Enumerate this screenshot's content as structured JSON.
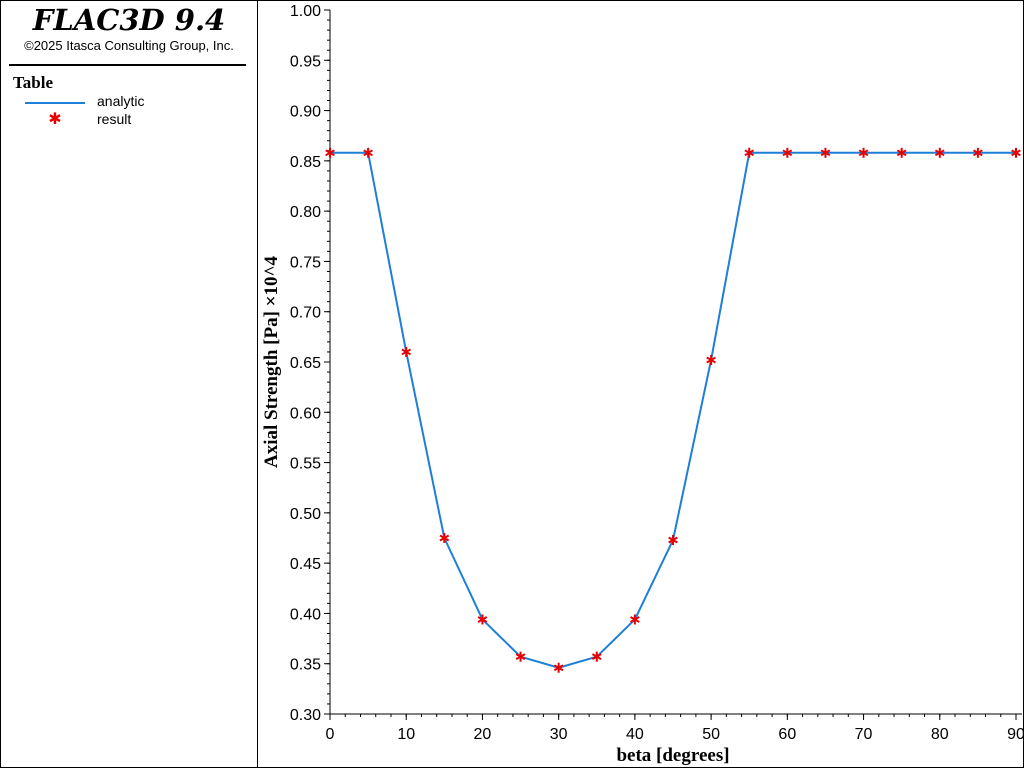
{
  "app": {
    "title": "FLAC3D 9.4",
    "copyright": "©2025 Itasca Consulting Group, Inc."
  },
  "legend": {
    "title": "Table",
    "items": [
      {
        "label": "analytic",
        "kind": "line",
        "color": "#1e7fd8"
      },
      {
        "label": "result",
        "kind": "marker",
        "color": "#e80000"
      }
    ]
  },
  "chart_data": {
    "type": "line",
    "title": "",
    "xlabel": "beta [degrees]",
    "ylabel": "Axial Strength [Pa] ×10^4",
    "xlim": [
      0,
      90
    ],
    "ylim": [
      0.3,
      1.0
    ],
    "x_ticks": [
      0,
      10,
      20,
      30,
      40,
      50,
      60,
      70,
      80,
      90
    ],
    "y_ticks": [
      0.3,
      0.35,
      0.4,
      0.45,
      0.5,
      0.55,
      0.6,
      0.65,
      0.7,
      0.75,
      0.8,
      0.85,
      0.9,
      0.95,
      1.0
    ],
    "y_tick_decimals": 2,
    "grid": false,
    "legend_placement": "left panel",
    "series": [
      {
        "name": "analytic",
        "kind": "line",
        "color": "#1e7fd8",
        "x": [
          0,
          5,
          10,
          15,
          20,
          25,
          30,
          35,
          40,
          45,
          50,
          55,
          60,
          65,
          70,
          75,
          80,
          85,
          90
        ],
        "y": [
          0.858,
          0.858,
          0.66,
          0.475,
          0.394,
          0.357,
          0.346,
          0.357,
          0.394,
          0.473,
          0.652,
          0.858,
          0.858,
          0.858,
          0.858,
          0.858,
          0.858,
          0.858,
          0.858
        ]
      },
      {
        "name": "result",
        "kind": "marker",
        "color": "#e80000",
        "x": [
          0,
          5,
          10,
          15,
          20,
          25,
          30,
          35,
          40,
          45,
          50,
          55,
          60,
          65,
          70,
          75,
          80,
          85,
          90
        ],
        "y": [
          0.858,
          0.858,
          0.66,
          0.475,
          0.394,
          0.357,
          0.346,
          0.357,
          0.394,
          0.473,
          0.652,
          0.858,
          0.858,
          0.858,
          0.858,
          0.858,
          0.858,
          0.858,
          0.858
        ]
      }
    ]
  }
}
